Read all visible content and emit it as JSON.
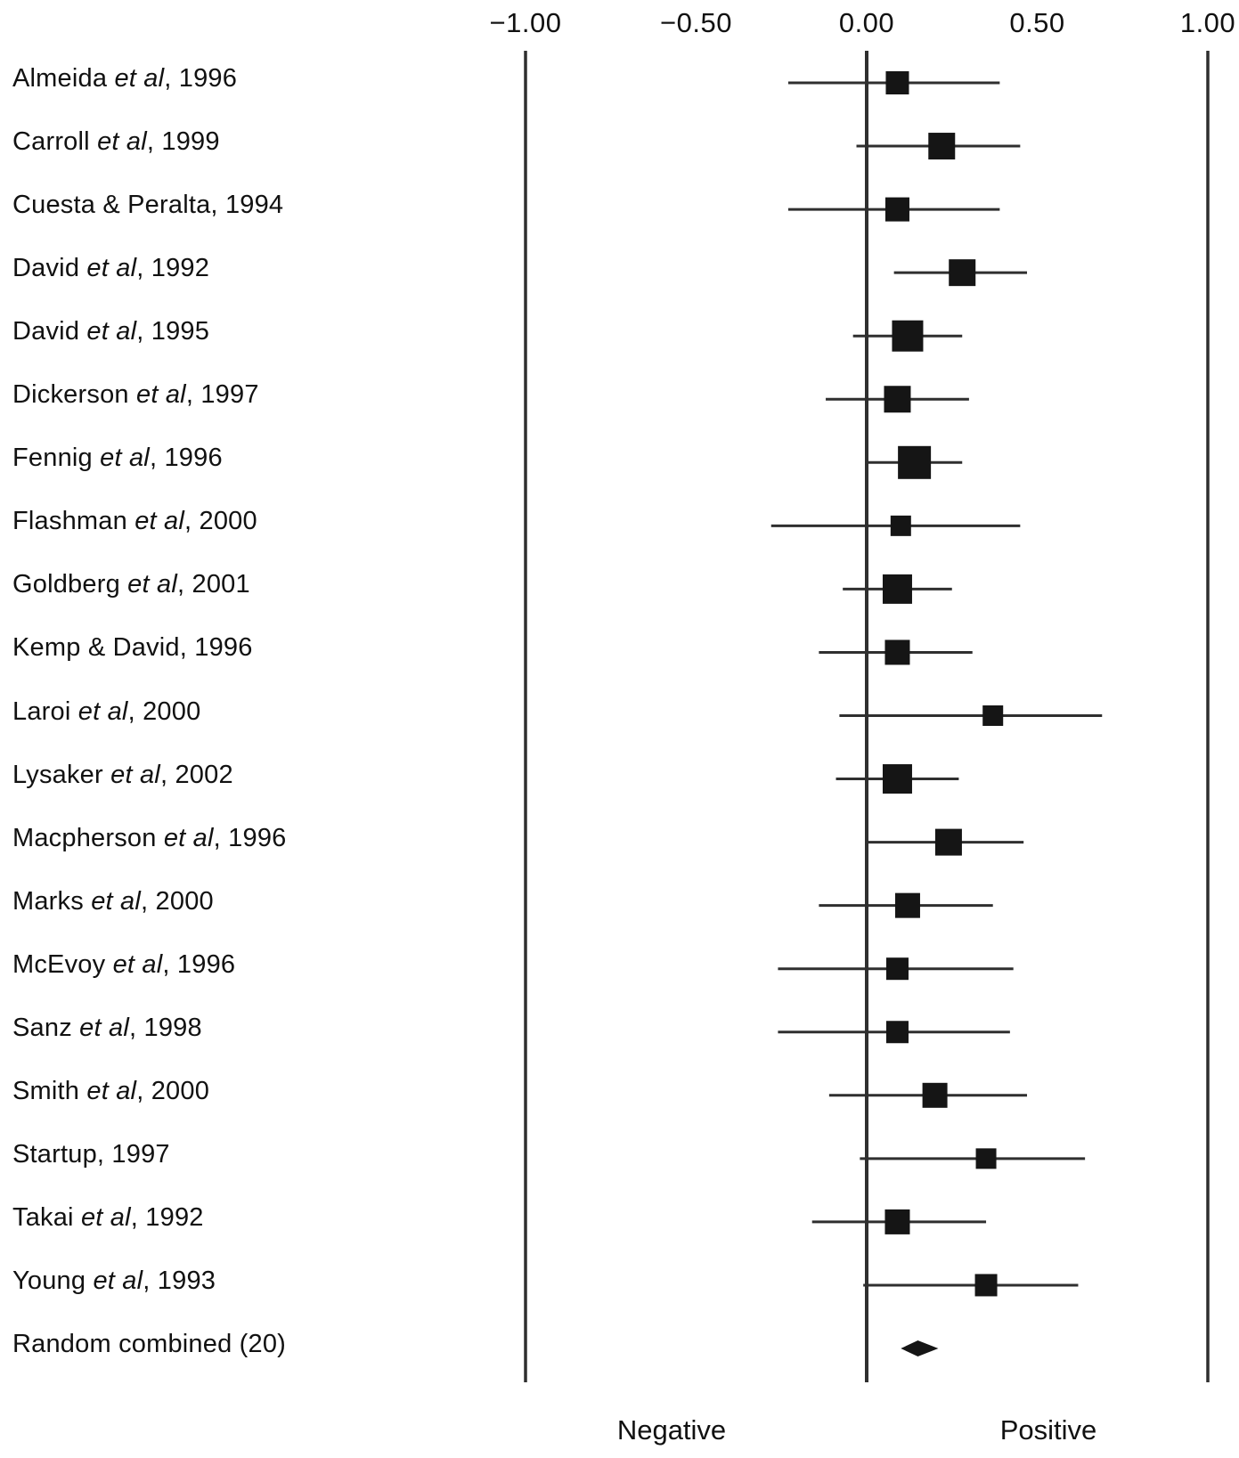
{
  "figure": {
    "background": "#ffffff",
    "text_color": "#111111",
    "marker_color": "#151515",
    "line_color": "#2f2f2f"
  },
  "chart_data": {
    "type": "forest",
    "title": "",
    "xlabel": "",
    "ylabel": "",
    "x_range": [
      -1.0,
      1.0
    ],
    "grid": false,
    "legend": "none",
    "x_axis": {
      "ticks": [
        -1.0,
        -0.5,
        0.0,
        0.5,
        1.0
      ],
      "tick_labels": [
        "−1.00",
        "−0.50",
        "0.00",
        "0.50",
        "1.00"
      ],
      "reference_lines": [
        -1.0,
        0.0,
        1.0
      ]
    },
    "axis_footer": {
      "negative": "Negative",
      "positive": "Positive"
    },
    "studies": [
      {
        "label_pre": "Almeida ",
        "label_italic": "et al",
        "label_post": ", 1996",
        "mean": 0.09,
        "ci_low": -0.23,
        "ci_high": 0.39,
        "marker": "square",
        "marker_size_px": 26
      },
      {
        "label_pre": "Carroll ",
        "label_italic": "et al",
        "label_post": ", 1999",
        "mean": 0.22,
        "ci_low": -0.03,
        "ci_high": 0.45,
        "marker": "square",
        "marker_size_px": 30
      },
      {
        "label_pre": "Cuesta & Peralta, 1994",
        "label_italic": "",
        "label_post": "",
        "mean": 0.09,
        "ci_low": -0.23,
        "ci_high": 0.39,
        "marker": "square",
        "marker_size_px": 27
      },
      {
        "label_pre": "David ",
        "label_italic": "et al",
        "label_post": ", 1992",
        "mean": 0.28,
        "ci_low": 0.08,
        "ci_high": 0.47,
        "marker": "square",
        "marker_size_px": 30
      },
      {
        "label_pre": "David ",
        "label_italic": "et al",
        "label_post": ", 1995",
        "mean": 0.12,
        "ci_low": -0.04,
        "ci_high": 0.28,
        "marker": "square",
        "marker_size_px": 35
      },
      {
        "label_pre": "Dickerson ",
        "label_italic": "et al",
        "label_post": ", 1997",
        "mean": 0.09,
        "ci_low": -0.12,
        "ci_high": 0.3,
        "marker": "square",
        "marker_size_px": 30
      },
      {
        "label_pre": "Fennig ",
        "label_italic": "et al",
        "label_post": ", 1996",
        "mean": 0.14,
        "ci_low": 0.0,
        "ci_high": 0.28,
        "marker": "square",
        "marker_size_px": 37
      },
      {
        "label_pre": "Flashman ",
        "label_italic": "et al",
        "label_post": ", 2000",
        "mean": 0.1,
        "ci_low": -0.28,
        "ci_high": 0.45,
        "marker": "square",
        "marker_size_px": 23
      },
      {
        "label_pre": "Goldberg ",
        "label_italic": "et al",
        "label_post": ", 2001",
        "mean": 0.09,
        "ci_low": -0.07,
        "ci_high": 0.25,
        "marker": "square",
        "marker_size_px": 33
      },
      {
        "label_pre": "Kemp & David, 1996",
        "label_italic": "",
        "label_post": "",
        "mean": 0.09,
        "ci_low": -0.14,
        "ci_high": 0.31,
        "marker": "square",
        "marker_size_px": 28
      },
      {
        "label_pre": "Laroi ",
        "label_italic": "et al",
        "label_post": ", 2000",
        "mean": 0.37,
        "ci_low": -0.08,
        "ci_high": 0.69,
        "marker": "square",
        "marker_size_px": 23
      },
      {
        "label_pre": "Lysaker ",
        "label_italic": "et al",
        "label_post": ", 2002",
        "mean": 0.09,
        "ci_low": -0.09,
        "ci_high": 0.27,
        "marker": "square",
        "marker_size_px": 33
      },
      {
        "label_pre": "Macpherson ",
        "label_italic": "et al",
        "label_post": ", 1996",
        "mean": 0.24,
        "ci_low": 0.0,
        "ci_high": 0.46,
        "marker": "square",
        "marker_size_px": 30
      },
      {
        "label_pre": "Marks ",
        "label_italic": "et al",
        "label_post": ", 2000",
        "mean": 0.12,
        "ci_low": -0.14,
        "ci_high": 0.37,
        "marker": "square",
        "marker_size_px": 28
      },
      {
        "label_pre": "McEvoy ",
        "label_italic": "et al",
        "label_post": ", 1996",
        "mean": 0.09,
        "ci_low": -0.26,
        "ci_high": 0.43,
        "marker": "square",
        "marker_size_px": 25
      },
      {
        "label_pre": "Sanz ",
        "label_italic": "et al",
        "label_post": ", 1998",
        "mean": 0.09,
        "ci_low": -0.26,
        "ci_high": 0.42,
        "marker": "square",
        "marker_size_px": 25
      },
      {
        "label_pre": "Smith ",
        "label_italic": "et al",
        "label_post": ", 2000",
        "mean": 0.2,
        "ci_low": -0.11,
        "ci_high": 0.47,
        "marker": "square",
        "marker_size_px": 28
      },
      {
        "label_pre": "Startup, 1997",
        "label_italic": "",
        "label_post": "",
        "mean": 0.35,
        "ci_low": -0.02,
        "ci_high": 0.64,
        "marker": "square",
        "marker_size_px": 23
      },
      {
        "label_pre": "Takai ",
        "label_italic": "et al",
        "label_post": ", 1992",
        "mean": 0.09,
        "ci_low": -0.16,
        "ci_high": 0.35,
        "marker": "square",
        "marker_size_px": 28
      },
      {
        "label_pre": "Young ",
        "label_italic": "et al",
        "label_post": ", 1993",
        "mean": 0.35,
        "ci_low": -0.01,
        "ci_high": 0.62,
        "marker": "square",
        "marker_size_px": 25
      }
    ],
    "summary": {
      "label_pre": "Random combined (20)",
      "label_italic": "",
      "label_post": "",
      "mean": 0.15,
      "ci_low": 0.1,
      "ci_high": 0.21,
      "marker": "diamond"
    }
  }
}
